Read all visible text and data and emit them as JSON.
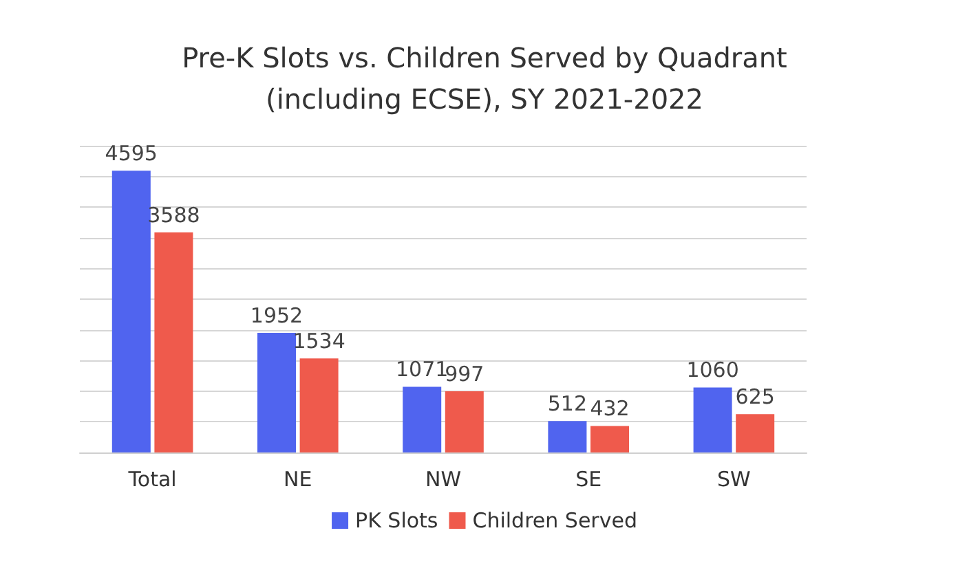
{
  "chart_data": {
    "type": "bar",
    "title": "Pre-K Slots vs. Children Served by Quadrant\n(including ECSE), SY 2021-2022",
    "categories": [
      "Total",
      "NE",
      "NW",
      "SE",
      "SW"
    ],
    "series": [
      {
        "name": "PK Slots",
        "color": "#5064ef",
        "values": [
          4595,
          1952,
          1071,
          512,
          1060
        ]
      },
      {
        "name": "Children Served",
        "color": "#ef5a4c",
        "values": [
          3588,
          1534,
          997,
          432,
          625
        ]
      }
    ],
    "data_labels": true,
    "ylim": [
      0,
      5000
    ],
    "yticks": [
      {
        "value": 0,
        "label": null
      },
      {
        "value": 500,
        "label": null
      },
      {
        "value": 1000,
        "label": null
      },
      {
        "value": 1500,
        "label": null
      },
      {
        "value": 2000,
        "label": null
      },
      {
        "value": 2500,
        "label": null
      },
      {
        "value": 3000,
        "label": null
      },
      {
        "value": 3500,
        "label": null
      },
      {
        "value": 4000,
        "label": null
      },
      {
        "value": 4500,
        "label": null
      },
      {
        "value": 5000,
        "label": null
      }
    ],
    "grid": "y",
    "legend": "bottom"
  }
}
